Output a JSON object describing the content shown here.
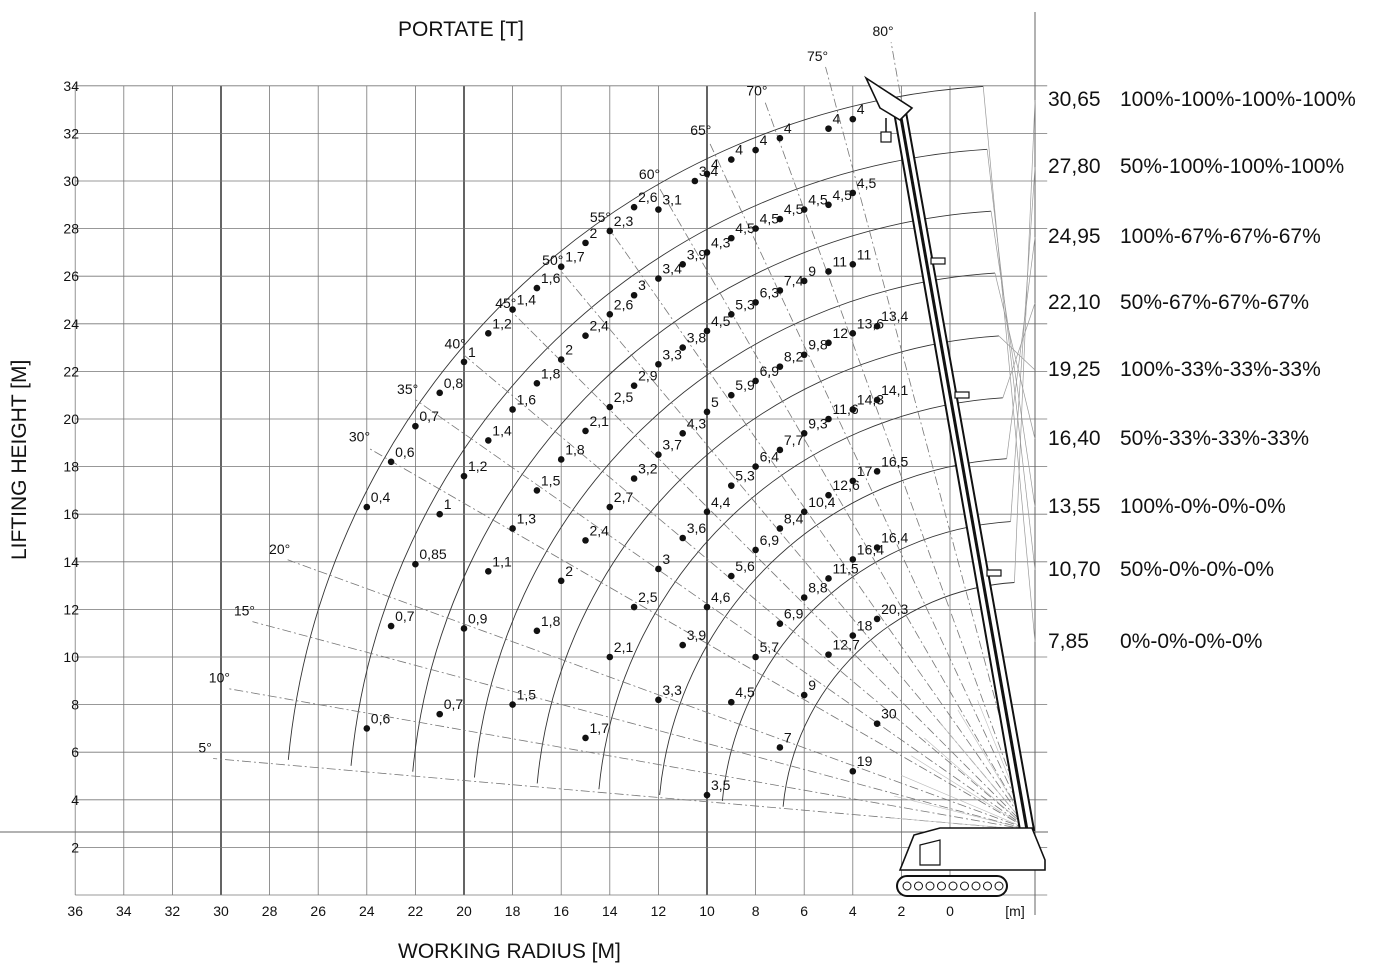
{
  "header": {
    "title": "PORTATE [T]"
  },
  "chart_data": {
    "type": "scatter",
    "title": "PORTATE [T]",
    "xlabel": "WORKING RADIUS [M]",
    "ylabel": "LIFTING HEIGHT [M]",
    "xunit": "[m]",
    "xlim": [
      36,
      -4
    ],
    "ylim": [
      0,
      34
    ],
    "xticks": [
      "36",
      "34",
      "32",
      "30",
      "28",
      "26",
      "24",
      "22",
      "20",
      "18",
      "16",
      "14",
      "12",
      "10",
      "8",
      "6",
      "4",
      "2",
      "0"
    ],
    "yticks": [
      "2",
      "4",
      "6",
      "8",
      "10",
      "12",
      "14",
      "16",
      "18",
      "20",
      "22",
      "24",
      "26",
      "28",
      "30",
      "32",
      "34"
    ],
    "grid": true,
    "angles": [
      "5°",
      "10°",
      "15°",
      "20°",
      "30°",
      "35°",
      "40°",
      "45°",
      "50°",
      "55°",
      "60°",
      "65°",
      "70°",
      "75°",
      "80°"
    ],
    "boom_configurations": [
      {
        "length": "30,65",
        "extension": "100%-100%-100%-100%"
      },
      {
        "length": "27,80",
        "extension": "50%-100%-100%-100%"
      },
      {
        "length": "24,95",
        "extension": "100%-67%-67%-67%"
      },
      {
        "length": "22,10",
        "extension": "50%-67%-67%-67%"
      },
      {
        "length": "19,25",
        "extension": "100%-33%-33%-33%"
      },
      {
        "length": "16,40",
        "extension": "50%-33%-33%-33%"
      },
      {
        "length": "13,55",
        "extension": "100%-0%-0%-0%"
      },
      {
        "length": "10,70",
        "extension": "50%-0%-0%-0%"
      },
      {
        "length": "7,85",
        "extension": "0%-0%-0%-0%"
      }
    ],
    "points": [
      {
        "x": 4,
        "y": 32.6,
        "load": "4"
      },
      {
        "x": 5,
        "y": 32.2,
        "load": "4"
      },
      {
        "x": 7,
        "y": 31.8,
        "load": "4"
      },
      {
        "x": 8,
        "y": 31.3,
        "load": "4"
      },
      {
        "x": 9,
        "y": 30.9,
        "load": "4"
      },
      {
        "x": 10,
        "y": 30.3,
        "load": "4"
      },
      {
        "x": 10.5,
        "y": 30.0,
        "load": "3,4"
      },
      {
        "x": 13,
        "y": 28.9,
        "load": "2,6"
      },
      {
        "x": 12,
        "y": 28.8,
        "load": "3,1"
      },
      {
        "x": 14,
        "y": 27.9,
        "load": "2,3"
      },
      {
        "x": 15,
        "y": 27.4,
        "load": "2"
      },
      {
        "x": 16,
        "y": 26.4,
        "load": "1,7"
      },
      {
        "x": 17,
        "y": 25.5,
        "load": "1,6"
      },
      {
        "x": 18,
        "y": 24.6,
        "load": "1,4"
      },
      {
        "x": 19,
        "y": 23.6,
        "load": "1,2"
      },
      {
        "x": 20,
        "y": 22.4,
        "load": "1"
      },
      {
        "x": 21,
        "y": 21.1,
        "load": "0,8"
      },
      {
        "x": 22,
        "y": 19.7,
        "load": "0,7"
      },
      {
        "x": 23,
        "y": 18.2,
        "load": "0,6"
      },
      {
        "x": 24,
        "y": 16.3,
        "load": "0,4"
      },
      {
        "x": 4,
        "y": 29.5,
        "load": "4,5"
      },
      {
        "x": 5,
        "y": 29.0,
        "load": "4,5"
      },
      {
        "x": 6,
        "y": 28.8,
        "load": "4,5"
      },
      {
        "x": 7,
        "y": 28.4,
        "load": "4,5"
      },
      {
        "x": 8,
        "y": 28.0,
        "load": "4,5"
      },
      {
        "x": 9,
        "y": 27.6,
        "load": "4,5"
      },
      {
        "x": 10,
        "y": 27.0,
        "load": "4,3"
      },
      {
        "x": 11,
        "y": 26.5,
        "load": "3,9"
      },
      {
        "x": 12,
        "y": 25.9,
        "load": "3,4"
      },
      {
        "x": 13,
        "y": 25.2,
        "load": "3"
      },
      {
        "x": 14,
        "y": 24.4,
        "load": "2,6"
      },
      {
        "x": 15,
        "y": 23.5,
        "load": "2,4"
      },
      {
        "x": 16,
        "y": 22.5,
        "load": "2"
      },
      {
        "x": 17,
        "y": 21.5,
        "load": "1,8"
      },
      {
        "x": 18,
        "y": 20.4,
        "load": "1,6"
      },
      {
        "x": 19,
        "y": 19.1,
        "load": "1,4"
      },
      {
        "x": 20,
        "y": 17.6,
        "load": "1,2"
      },
      {
        "x": 21,
        "y": 16.0,
        "load": "1"
      },
      {
        "x": 22,
        "y": 13.9,
        "load": "0,85"
      },
      {
        "x": 23,
        "y": 11.3,
        "load": "0,7"
      },
      {
        "x": 24,
        "y": 7.0,
        "load": "0,6"
      },
      {
        "x": 4,
        "y": 26.5,
        "load": "11"
      },
      {
        "x": 5,
        "y": 26.2,
        "load": "11"
      },
      {
        "x": 6,
        "y": 25.8,
        "load": "9"
      },
      {
        "x": 7,
        "y": 25.4,
        "load": "7,4"
      },
      {
        "x": 8,
        "y": 24.9,
        "load": "6,3"
      },
      {
        "x": 9,
        "y": 24.4,
        "load": "5,3"
      },
      {
        "x": 10,
        "y": 23.7,
        "load": "4,5"
      },
      {
        "x": 11,
        "y": 23.0,
        "load": "3,8"
      },
      {
        "x": 12,
        "y": 22.3,
        "load": "3,3"
      },
      {
        "x": 13,
        "y": 21.4,
        "load": "2,9"
      },
      {
        "x": 14,
        "y": 20.5,
        "load": "2,5"
      },
      {
        "x": 15,
        "y": 19.5,
        "load": "2,1"
      },
      {
        "x": 16,
        "y": 18.3,
        "load": "1,8"
      },
      {
        "x": 17,
        "y": 17.0,
        "load": "1,5"
      },
      {
        "x": 18,
        "y": 15.4,
        "load": "1,3"
      },
      {
        "x": 19,
        "y": 13.6,
        "load": "1,1"
      },
      {
        "x": 20,
        "y": 11.2,
        "load": "0,9"
      },
      {
        "x": 21,
        "y": 7.6,
        "load": "0,7"
      },
      {
        "x": 3,
        "y": 23.9,
        "load": "13,4"
      },
      {
        "x": 4,
        "y": 23.6,
        "load": "13,6"
      },
      {
        "x": 5,
        "y": 23.2,
        "load": "12"
      },
      {
        "x": 6,
        "y": 22.7,
        "load": "9,8"
      },
      {
        "x": 7,
        "y": 22.2,
        "load": "8,2"
      },
      {
        "x": 8,
        "y": 21.6,
        "load": "6,9"
      },
      {
        "x": 9,
        "y": 21.0,
        "load": "5,9"
      },
      {
        "x": 10,
        "y": 20.3,
        "load": "5"
      },
      {
        "x": 11,
        "y": 19.4,
        "load": "4,3"
      },
      {
        "x": 12,
        "y": 18.5,
        "load": "3,7"
      },
      {
        "x": 13,
        "y": 17.5,
        "load": "3,2"
      },
      {
        "x": 14,
        "y": 16.3,
        "load": "2,7"
      },
      {
        "x": 15,
        "y": 14.9,
        "load": "2,4"
      },
      {
        "x": 16,
        "y": 13.2,
        "load": "2"
      },
      {
        "x": 17,
        "y": 11.1,
        "load": "1,8"
      },
      {
        "x": 18,
        "y": 8.0,
        "load": "1,5"
      },
      {
        "x": 3,
        "y": 20.8,
        "load": "14,1"
      },
      {
        "x": 4,
        "y": 20.4,
        "load": "14,3"
      },
      {
        "x": 5,
        "y": 20.0,
        "load": "11,6"
      },
      {
        "x": 6,
        "y": 19.4,
        "load": "9,3"
      },
      {
        "x": 7,
        "y": 18.7,
        "load": "7,7"
      },
      {
        "x": 8,
        "y": 18.0,
        "load": "6,4"
      },
      {
        "x": 9,
        "y": 17.2,
        "load": "5,3"
      },
      {
        "x": 10,
        "y": 16.1,
        "load": "4,4"
      },
      {
        "x": 11,
        "y": 15.0,
        "load": "3,6"
      },
      {
        "x": 12,
        "y": 13.7,
        "load": "3"
      },
      {
        "x": 13,
        "y": 12.1,
        "load": "2,5"
      },
      {
        "x": 14,
        "y": 10.0,
        "load": "2,1"
      },
      {
        "x": 15,
        "y": 6.6,
        "load": "1,7"
      },
      {
        "x": 3,
        "y": 17.8,
        "load": "16,5"
      },
      {
        "x": 4,
        "y": 17.4,
        "load": "17"
      },
      {
        "x": 5,
        "y": 16.8,
        "load": "12,6"
      },
      {
        "x": 6,
        "y": 16.1,
        "load": "10,4"
      },
      {
        "x": 7,
        "y": 15.4,
        "load": "8,4"
      },
      {
        "x": 8,
        "y": 14.5,
        "load": "6,9"
      },
      {
        "x": 9,
        "y": 13.4,
        "load": "5,6"
      },
      {
        "x": 10,
        "y": 12.1,
        "load": "4,6"
      },
      {
        "x": 11,
        "y": 10.5,
        "load": "3,9"
      },
      {
        "x": 12,
        "y": 8.2,
        "load": "3,3"
      },
      {
        "x": 3,
        "y": 14.6,
        "load": "16,4"
      },
      {
        "x": 4,
        "y": 14.1,
        "load": "16,4"
      },
      {
        "x": 5,
        "y": 13.3,
        "load": "11,5"
      },
      {
        "x": 6,
        "y": 12.5,
        "load": "8,8"
      },
      {
        "x": 7,
        "y": 11.4,
        "load": "6,9"
      },
      {
        "x": 8,
        "y": 10.0,
        "load": "5,7"
      },
      {
        "x": 9,
        "y": 8.1,
        "load": "4,5"
      },
      {
        "x": 10,
        "y": 4.2,
        "load": "3,5"
      },
      {
        "x": 3,
        "y": 11.6,
        "load": "20,3"
      },
      {
        "x": 4,
        "y": 10.9,
        "load": "18"
      },
      {
        "x": 5,
        "y": 10.1,
        "load": "12,7"
      },
      {
        "x": 6,
        "y": 8.4,
        "load": "9"
      },
      {
        "x": 7,
        "y": 6.2,
        "load": "7"
      },
      {
        "x": 3,
        "y": 7.2,
        "load": "30"
      },
      {
        "x": 4,
        "y": 5.2,
        "load": "19"
      }
    ]
  }
}
